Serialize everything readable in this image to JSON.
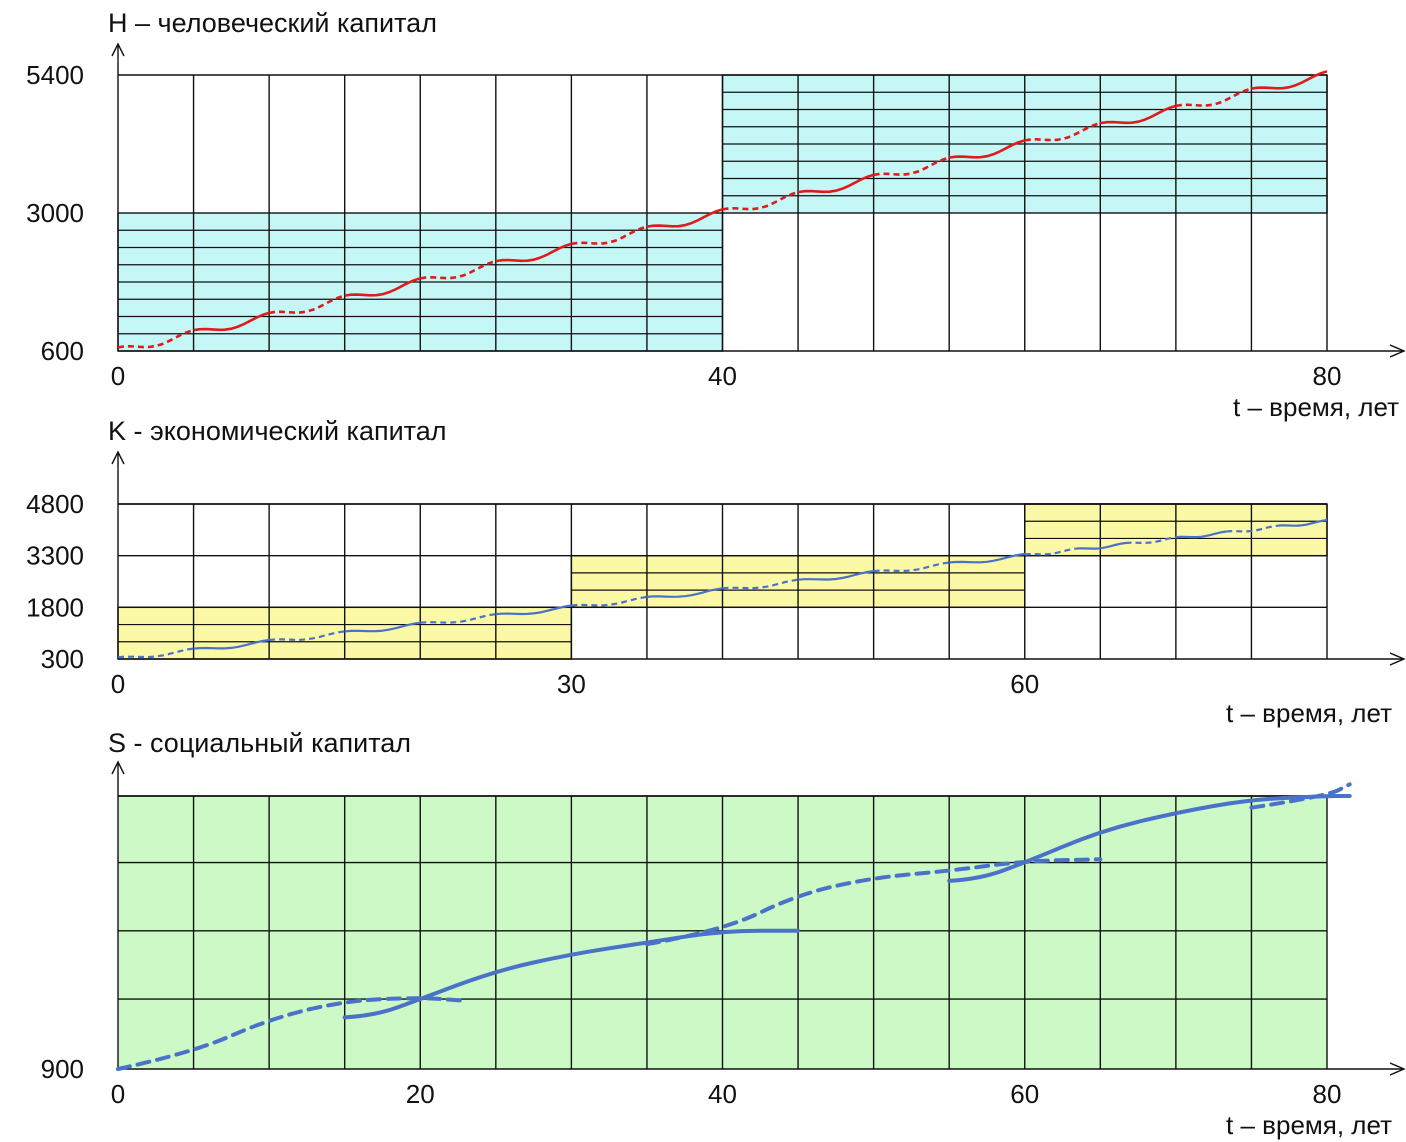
{
  "chart_data": [
    {
      "type": "line",
      "title": "H – человеческий  капитал",
      "xlabel": "t – время, лет",
      "ylabel": "",
      "xlim": [
        0,
        80
      ],
      "ylim": [
        600,
        5400
      ],
      "x_ticks": [
        "0",
        "40",
        "80"
      ],
      "x_tick_values": [
        0,
        40,
        80
      ],
      "y_ticks": [
        "600",
        "3000",
        "5400"
      ],
      "y_tick_values": [
        600,
        3000,
        5400
      ],
      "grid_step_x": 5,
      "bands": [
        {
          "x": [
            0,
            40
          ],
          "y": [
            600,
            3000
          ],
          "color": "#c6f7f7",
          "hlines": 8
        },
        {
          "x": [
            40,
            80
          ],
          "y": [
            3000,
            5400
          ],
          "color": "#c6f7f7",
          "hlines": 8
        }
      ],
      "series": [
        {
          "color": "#e01b1b",
          "style": "stepped-wave",
          "x": [
            0,
            40,
            80
          ],
          "values": [
            600,
            3000,
            5400
          ]
        }
      ]
    },
    {
      "type": "line",
      "title": "K - экономический  капитал",
      "xlabel": "t – время, лет",
      "ylabel": "",
      "xlim": [
        0,
        80
      ],
      "ylim": [
        300,
        4800
      ],
      "x_ticks": [
        "0",
        "30",
        "60"
      ],
      "x_tick_values": [
        0,
        30,
        60
      ],
      "y_ticks": [
        "300",
        "1800",
        "3300",
        "4800"
      ],
      "y_tick_values": [
        300,
        1800,
        3300,
        4800
      ],
      "grid_step_x": 5,
      "bands": [
        {
          "x": [
            0,
            30
          ],
          "y": [
            300,
            1800
          ],
          "color": "#fbf9a6",
          "hlines": 3
        },
        {
          "x": [
            30,
            60
          ],
          "y": [
            1800,
            3300
          ],
          "color": "#fbf9a6",
          "hlines": 3
        },
        {
          "x": [
            60,
            80
          ],
          "y": [
            3300,
            4800
          ],
          "color": "#fbf9a6",
          "hlines": 3
        }
      ],
      "series": [
        {
          "color": "#4a72c8",
          "style": "stepped-wave",
          "x": [
            0,
            30,
            60,
            80
          ],
          "values": [
            300,
            1800,
            3300,
            4300
          ]
        }
      ]
    },
    {
      "type": "line",
      "title": "S - социальный  капитал",
      "xlabel": "t – время, лет",
      "ylabel": "",
      "xlim": [
        0,
        80
      ],
      "ylim": [
        900,
        5000
      ],
      "x_ticks": [
        "0",
        "20",
        "40",
        "60",
        "80"
      ],
      "x_tick_values": [
        0,
        20,
        40,
        60,
        80
      ],
      "y_ticks": [
        "900"
      ],
      "y_tick_values": [
        900
      ],
      "grid_step_x": 5,
      "grid_y_values": [
        1950,
        2975,
        4000,
        5000
      ],
      "background": "#ccf9c6",
      "series": [
        {
          "color": "#4a72c8",
          "style": "solid",
          "x": [
            15,
            17,
            20,
            25,
            30,
            35,
            40,
            45
          ],
          "values": [
            1675,
            1700,
            1950,
            2375,
            2625,
            2800,
            2975,
            2975
          ]
        },
        {
          "color": "#4a72c8",
          "style": "solid",
          "x": [
            55,
            57,
            60,
            65,
            70,
            75,
            80,
            81.5
          ],
          "values": [
            3725,
            3750,
            4000,
            4475,
            4750,
            4950,
            5000,
            5000
          ]
        },
        {
          "color": "#4a72c8",
          "style": "dashed",
          "x": [
            0,
            5,
            10,
            15,
            20,
            23
          ],
          "values": [
            900,
            1150,
            1650,
            1925,
            1975,
            1925
          ]
        },
        {
          "color": "#4a72c8",
          "style": "dashed",
          "x": [
            35,
            40,
            45,
            50,
            55,
            60,
            65
          ],
          "values": [
            2775,
            2975,
            3525,
            3775,
            3875,
            4025,
            4050
          ]
        },
        {
          "color": "#4a72c8",
          "style": "dashed",
          "x": [
            75,
            80,
            81.5
          ],
          "values": [
            4825,
            5000,
            5175
          ]
        }
      ]
    }
  ]
}
